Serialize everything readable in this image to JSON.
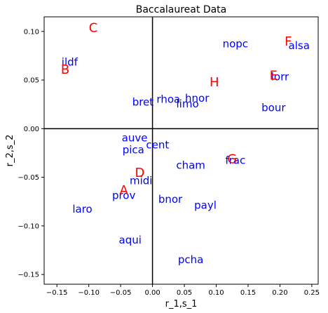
{
  "chart_data": {
    "type": "scatter",
    "title": "Baccalaureat Data",
    "xlabel": "r_1,s_1",
    "ylabel": "r_2,s_2",
    "xlim": [
      -0.17,
      0.26
    ],
    "ylim": [
      -0.16,
      0.115
    ],
    "xticks": [
      -0.15,
      -0.1,
      -0.05,
      0.0,
      0.05,
      0.1,
      0.15,
      0.2,
      0.25
    ],
    "xtick_labels": [
      "−0.15",
      "−0.10",
      "−0.05",
      "0.00",
      "0.05",
      "0.10",
      "0.15",
      "0.20",
      "0.25"
    ],
    "yticks": [
      -0.15,
      -0.1,
      -0.05,
      0.0,
      0.05,
      0.1
    ],
    "ytick_labels": [
      "−0.15",
      "−0.10",
      "−0.05",
      "0.00",
      "0.05",
      "0.10"
    ],
    "grid": false,
    "reference_lines": {
      "x": 0,
      "y": 0
    },
    "colors": {
      "regions": "#0000ff",
      "categories": "#ff0000"
    },
    "series": [
      {
        "color": "#0000ff",
        "points": [
          {
            "label": "ildf",
            "x": -0.13,
            "y": 0.068
          },
          {
            "label": "nopc",
            "x": 0.13,
            "y": 0.087
          },
          {
            "label": "alsa",
            "x": 0.23,
            "y": 0.085
          },
          {
            "label": "lorr",
            "x": 0.2,
            "y": 0.053
          },
          {
            "label": "bour",
            "x": 0.19,
            "y": 0.021
          },
          {
            "label": "bret",
            "x": -0.015,
            "y": 0.027
          },
          {
            "label": "rhoa",
            "x": 0.025,
            "y": 0.03
          },
          {
            "label": "hnor",
            "x": 0.07,
            "y": 0.031
          },
          {
            "label": "limo",
            "x": 0.055,
            "y": 0.025
          },
          {
            "label": "auve",
            "x": -0.028,
            "y": -0.01
          },
          {
            "label": "cent",
            "x": 0.008,
            "y": -0.017
          },
          {
            "label": "pica",
            "x": -0.03,
            "y": -0.022
          },
          {
            "label": "frac",
            "x": 0.13,
            "y": -0.033
          },
          {
            "label": "cham",
            "x": 0.06,
            "y": -0.038
          },
          {
            "label": "midi",
            "x": -0.018,
            "y": -0.054
          },
          {
            "label": "prov",
            "x": -0.045,
            "y": -0.069
          },
          {
            "label": "bnor",
            "x": 0.028,
            "y": -0.073
          },
          {
            "label": "payl",
            "x": 0.083,
            "y": -0.079
          },
          {
            "label": "laro",
            "x": -0.11,
            "y": -0.083
          },
          {
            "label": "aqui",
            "x": -0.035,
            "y": -0.115
          },
          {
            "label": "pcha",
            "x": 0.06,
            "y": -0.135
          }
        ]
      },
      {
        "color": "#ff0000",
        "points": [
          {
            "label": "C",
            "x": -0.093,
            "y": 0.103
          },
          {
            "label": "B",
            "x": -0.137,
            "y": 0.06
          },
          {
            "label": "F",
            "x": 0.213,
            "y": 0.089
          },
          {
            "label": "E",
            "x": 0.19,
            "y": 0.054
          },
          {
            "label": "H",
            "x": 0.097,
            "y": 0.047
          },
          {
            "label": "G",
            "x": 0.125,
            "y": -0.032
          },
          {
            "label": "D",
            "x": -0.02,
            "y": -0.046
          },
          {
            "label": "A",
            "x": -0.045,
            "y": -0.064
          }
        ]
      }
    ]
  }
}
